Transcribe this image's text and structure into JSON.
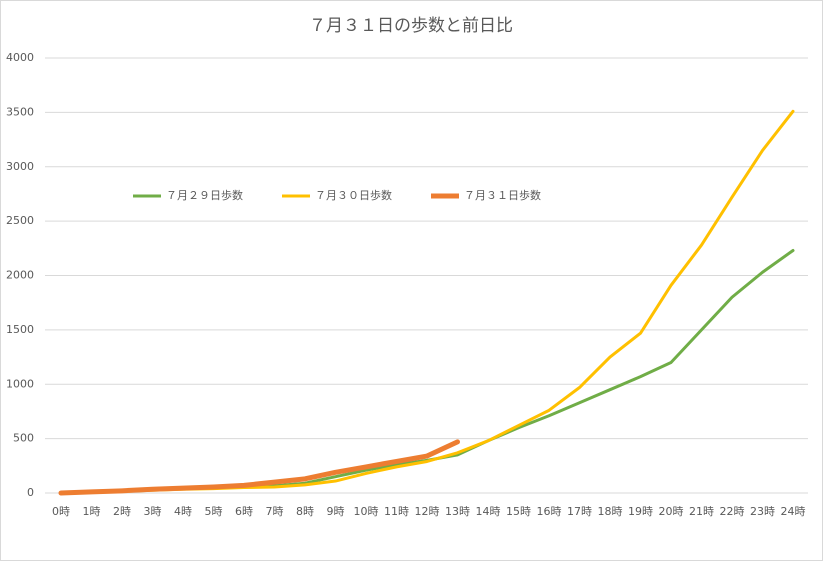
{
  "chart_data": {
    "type": "line",
    "title": "７月３１日の歩数と前日比",
    "categories": [
      "0時",
      "1時",
      "2時",
      "3時",
      "4時",
      "5時",
      "6時",
      "7時",
      "8時",
      "9時",
      "10時",
      "11時",
      "12時",
      "13時",
      "14時",
      "15時",
      "16時",
      "17時",
      "18時",
      "19時",
      "20時",
      "21時",
      "22時",
      "23時",
      "24時"
    ],
    "series": [
      {
        "name": "７月２９日歩数",
        "color": "#70ad47",
        "width": 3,
        "values": [
          0,
          10,
          20,
          30,
          40,
          45,
          55,
          65,
          90,
          150,
          210,
          260,
          300,
          350,
          480,
          600,
          710,
          830,
          950,
          1070,
          1200,
          1500,
          1800,
          2030,
          2230
        ]
      },
      {
        "name": "７月３０日歩数",
        "color": "#ffc000",
        "width": 3,
        "values": [
          0,
          5,
          15,
          25,
          35,
          40,
          50,
          55,
          75,
          110,
          180,
          240,
          290,
          370,
          480,
          620,
          760,
          970,
          1250,
          1470,
          1910,
          2280,
          2720,
          3150,
          3510
        ]
      },
      {
        "name": "７月３１日歩数",
        "color": "#ed7d31",
        "width": 5,
        "values": [
          0,
          10,
          20,
          35,
          45,
          55,
          70,
          100,
          130,
          190,
          240,
          290,
          340,
          470,
          null,
          null,
          null,
          null,
          null,
          null,
          null,
          null,
          null,
          null,
          null
        ]
      }
    ],
    "ylim": [
      0,
      4000
    ],
    "yticks": [
      0,
      500,
      1000,
      1500,
      2000,
      2500,
      3000,
      3500,
      4000
    ],
    "grid": true
  }
}
